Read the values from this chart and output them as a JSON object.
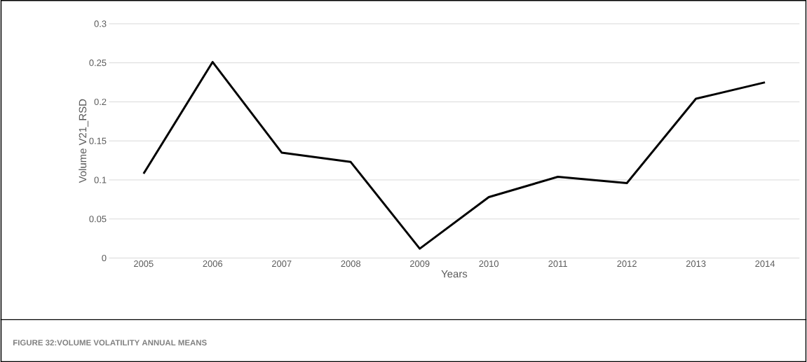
{
  "chart_data": {
    "type": "line",
    "categories": [
      "2005",
      "2006",
      "2007",
      "2008",
      "2009",
      "2010",
      "2011",
      "2012",
      "2013",
      "2014"
    ],
    "values": [
      0.108,
      0.251,
      0.135,
      0.123,
      0.012,
      0.078,
      0.104,
      0.096,
      0.204,
      0.225
    ],
    "color": "#000000",
    "xlabel": "Years",
    "ylabel": "Volume V21_RSD",
    "annotations": [
      "FIGURE 32:VOLUME VOLATILITY ANNUAL MEANS"
    ],
    "ylim": [
      0,
      0.3
    ],
    "yticks": [
      0,
      0.05,
      0.1,
      0.15,
      0.2,
      0.25,
      0.3
    ],
    "grid": "y",
    "line_style": "solid"
  }
}
